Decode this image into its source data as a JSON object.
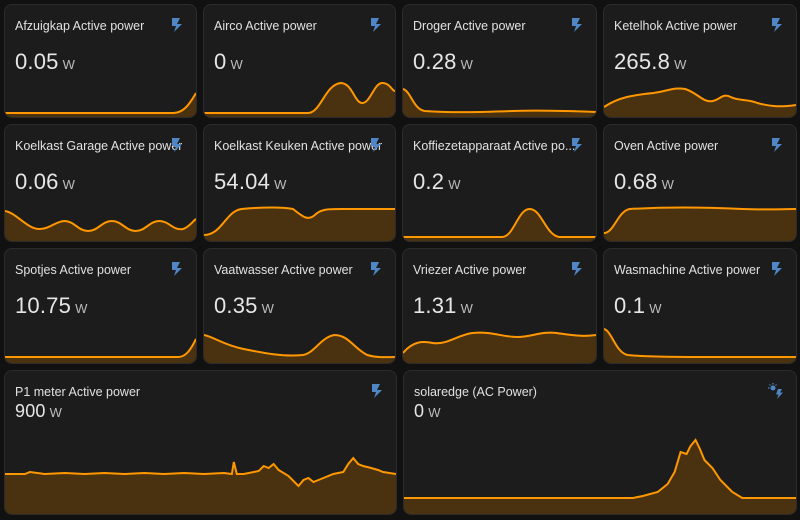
{
  "colors": {
    "accent": "#ff9800",
    "icon": "#4f86c6",
    "fill": "#4a3210"
  },
  "cards": [
    {
      "title": "Afzuigkap Active power",
      "value": "0.05",
      "unit": "W",
      "icon": "flash-icon"
    },
    {
      "title": "Airco Active power",
      "value": "0",
      "unit": "W",
      "icon": "flash-icon"
    },
    {
      "title": "Droger Active power",
      "value": "0.28",
      "unit": "W",
      "icon": "flash-icon"
    },
    {
      "title": "Ketelhok Active power",
      "value": "265.8",
      "unit": "W",
      "icon": "flash-icon"
    },
    {
      "title": "Koelkast Garage Active power",
      "value": "0.06",
      "unit": "W",
      "icon": "flash-icon"
    },
    {
      "title": "Koelkast Keuken Active power",
      "value": "54.04",
      "unit": "W",
      "icon": "flash-icon"
    },
    {
      "title": "Koffiezetapparaat Active po...",
      "value": "0.2",
      "unit": "W",
      "icon": "flash-icon"
    },
    {
      "title": "Oven Active power",
      "value": "0.68",
      "unit": "W",
      "icon": "flash-icon"
    },
    {
      "title": "Spotjes Active power",
      "value": "10.75",
      "unit": "W",
      "icon": "flash-icon"
    },
    {
      "title": "Vaatwasser Active power",
      "value": "0.35",
      "unit": "W",
      "icon": "flash-icon"
    },
    {
      "title": "Vriezer Active power",
      "value": "1.31",
      "unit": "W",
      "icon": "flash-icon"
    },
    {
      "title": "Wasmachine Active power",
      "value": "0.1",
      "unit": "W",
      "icon": "flash-icon"
    },
    {
      "title": "P1 meter Active power",
      "value": "900",
      "unit": "W",
      "icon": "flash-icon"
    },
    {
      "title": "solaredge (AC Power)",
      "value": "0",
      "unit": "W",
      "icon": "solar-power-icon"
    }
  ]
}
